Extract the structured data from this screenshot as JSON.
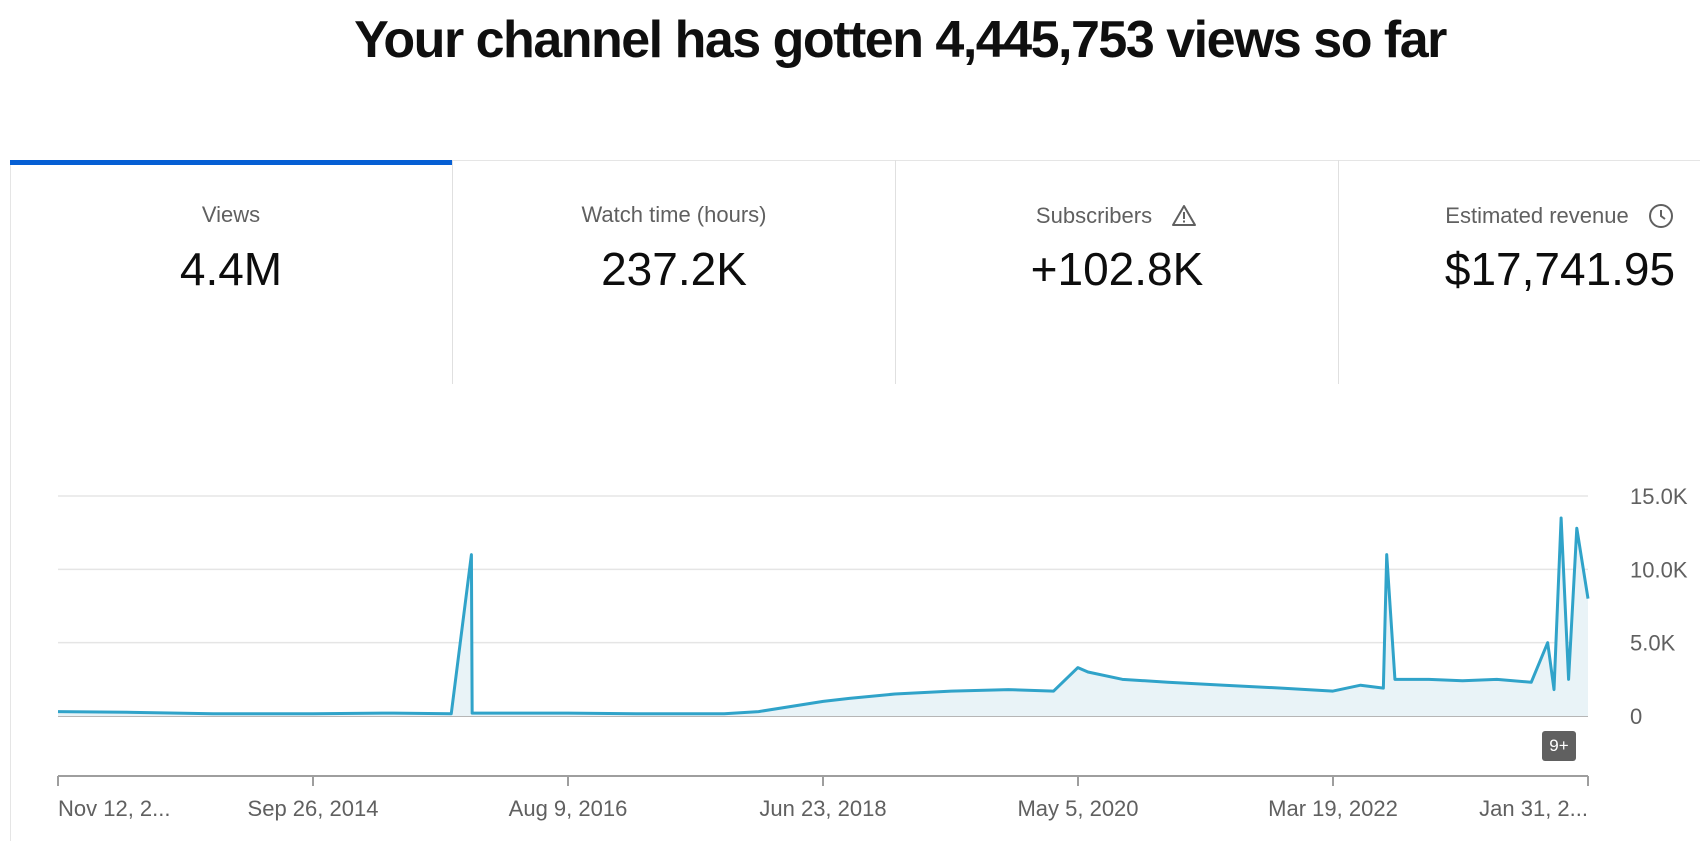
{
  "headline": "Your channel has gotten 4,445,753 views so far",
  "tabs": [
    {
      "label": "Views",
      "value": "4.4M",
      "icon": null
    },
    {
      "label": "Watch time (hours)",
      "value": "237.2K",
      "icon": null
    },
    {
      "label": "Subscribers",
      "value": "+102.8K",
      "icon": "warning-icon"
    },
    {
      "label": "Estimated revenue",
      "value": "$17,741.95",
      "icon": "clock-icon"
    }
  ],
  "colors": {
    "accent": "#065fd4",
    "line": "#30a3c9",
    "area": "#e9f3f7",
    "axis_text": "#606060",
    "badge": "#606060"
  },
  "badge": "9+",
  "chart_data": {
    "type": "area",
    "metric": "Views",
    "x_start": "Nov 12, 2012",
    "x_end": "Jan 31, 2024",
    "x_ticks": [
      "Nov 12, 2...",
      "Sep 26, 2014",
      "Aug 9, 2016",
      "Jun 23, 2018",
      "May 5, 2020",
      "Mar 19, 2022",
      "Jan 31, 2..."
    ],
    "y_ticks": [
      "15.0K",
      "10.0K",
      "5.0K",
      "0"
    ],
    "ylim": [
      0,
      15000
    ],
    "grid": true,
    "series": [
      {
        "x": [
          "2012-11-12",
          "2013-06-01",
          "2014-01-01",
          "2014-09-26",
          "2015-05-01",
          "2015-10-01",
          "2015-11-24",
          "2015-11-26",
          "2016-03-01",
          "2016-08-09",
          "2017-03-01",
          "2017-10-01",
          "2018-01-01",
          "2018-06-23",
          "2018-09-01",
          "2019-01-01",
          "2019-06-01",
          "2019-11-01",
          "2020-03-01",
          "2020-05-05",
          "2020-06-01",
          "2020-09-01",
          "2021-01-01",
          "2021-06-01",
          "2021-11-01",
          "2022-03-19",
          "2022-06-01",
          "2022-08-01",
          "2022-08-10",
          "2022-09-01",
          "2022-12-01",
          "2023-03-01",
          "2023-06-01",
          "2023-09-01",
          "2023-10-15",
          "2023-11-01",
          "2023-11-20",
          "2023-12-10",
          "2024-01-01",
          "2024-01-31"
        ],
        "y": [
          300,
          250,
          150,
          150,
          200,
          150,
          11000,
          200,
          200,
          200,
          150,
          150,
          300,
          1000,
          1200,
          1500,
          1700,
          1800,
          1700,
          3300,
          3000,
          2500,
          2300,
          2100,
          1900,
          1700,
          2100,
          1900,
          11000,
          2500,
          2500,
          2400,
          2500,
          2300,
          5000,
          1800,
          13500,
          2500,
          12800,
          8000
        ]
      }
    ]
  }
}
